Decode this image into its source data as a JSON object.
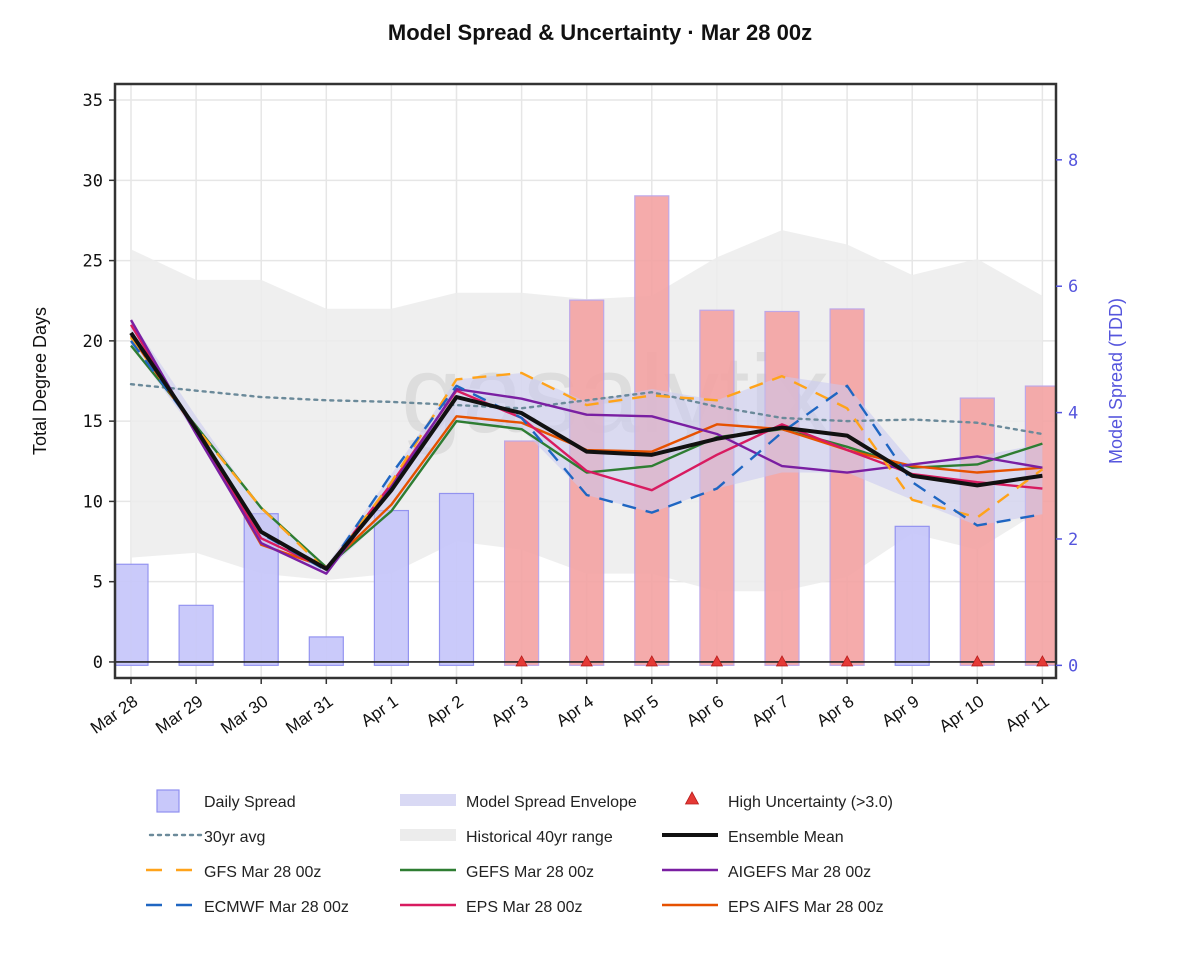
{
  "chart_data": {
    "type": "line",
    "title": "Model Spread & Uncertainty · Mar 28 00z",
    "watermark": "gasalytix",
    "categories": [
      "Mar 28",
      "Mar 29",
      "Mar 30",
      "Mar 31",
      "Apr 1",
      "Apr 2",
      "Apr 3",
      "Apr 4",
      "Apr 5",
      "Apr 6",
      "Apr 7",
      "Apr 8",
      "Apr 9",
      "Apr 10",
      "Apr 11"
    ],
    "y_left": {
      "label": "Total Degree Days",
      "range": [
        -1,
        36
      ],
      "ticks": [
        0,
        5,
        10,
        15,
        20,
        25,
        30,
        35
      ]
    },
    "y_right": {
      "label": "Model Spread (TDD)",
      "range": [
        -0.2,
        9.2
      ],
      "ticks": [
        0,
        2,
        4,
        6,
        8
      ]
    },
    "grid": true,
    "historical_range": {
      "name": "Historical 40yr range",
      "upper": [
        25.7,
        23.8,
        23.8,
        22.0,
        22.0,
        23.0,
        23.0,
        22.6,
        22.8,
        25.2,
        26.9,
        26.0,
        24.1,
        25.1,
        22.8
      ],
      "lower": [
        6.5,
        6.8,
        5.5,
        5.1,
        5.5,
        7.5,
        7.0,
        5.5,
        5.5,
        4.4,
        4.4,
        5.3,
        8.0,
        7.0,
        9.5
      ]
    },
    "spread_envelope": {
      "name": "Model Spread Envelope",
      "upper": [
        21.3,
        15.3,
        9.5,
        6.0,
        11.7,
        17.6,
        18.0,
        16.2,
        17.0,
        16.3,
        17.8,
        17.2,
        12.4,
        12.8,
        13.6
      ],
      "lower": [
        19.7,
        14.2,
        7.2,
        5.6,
        9.4,
        15.0,
        14.5,
        10.4,
        9.3,
        10.8,
        11.8,
        11.8,
        10.1,
        8.5,
        9.2
      ]
    },
    "daily_spread": {
      "name": "Daily Spread",
      "values": [
        1.6,
        0.95,
        2.4,
        0.45,
        2.45,
        2.72,
        3.55,
        5.78,
        7.43,
        5.62,
        5.6,
        5.64,
        2.2,
        4.23,
        4.42
      ],
      "threshold": 3.0
    },
    "high_uncertainty": {
      "name": "High Uncertainty (>3.0)",
      "categories": [
        "Apr 3",
        "Apr 4",
        "Apr 5",
        "Apr 6",
        "Apr 7",
        "Apr 8",
        "Apr 10",
        "Apr 11"
      ]
    },
    "series": [
      {
        "name": "30yr avg",
        "color": "#6b8a9a",
        "dash": "dot",
        "values": [
          17.3,
          16.9,
          16.5,
          16.3,
          16.2,
          16.0,
          15.8,
          16.3,
          16.8,
          15.9,
          15.2,
          15.0,
          15.1,
          14.9,
          14.2
        ]
      },
      {
        "name": "GFS Mar 28 00z",
        "color": "#ffa31a",
        "dash": "dash",
        "values": [
          20.2,
          14.6,
          9.6,
          5.7,
          11.2,
          17.6,
          18.0,
          16.0,
          16.6,
          16.3,
          17.8,
          15.8,
          10.1,
          9.0,
          12.0
        ]
      },
      {
        "name": "ECMWF Mar 28 00z",
        "color": "#1f66c2",
        "dash": "dash",
        "values": [
          20.0,
          14.5,
          8.0,
          5.7,
          11.7,
          17.2,
          15.2,
          10.4,
          9.3,
          10.8,
          14.3,
          17.2,
          11.2,
          8.5,
          9.2
        ]
      },
      {
        "name": "Ensemble Mean",
        "color": "#111111",
        "dash": "solid",
        "values": [
          20.5,
          14.5,
          8.1,
          5.8,
          10.7,
          16.5,
          15.5,
          13.1,
          12.9,
          13.9,
          14.6,
          14.1,
          11.6,
          11.0,
          11.6
        ]
      },
      {
        "name": "GEFS Mar 28 00z",
        "color": "#2e7d32",
        "dash": "solid",
        "values": [
          19.7,
          14.7,
          9.6,
          5.9,
          9.4,
          15.0,
          14.5,
          11.8,
          12.2,
          14.0,
          14.5,
          13.4,
          12.1,
          12.3,
          13.6
        ]
      },
      {
        "name": "AIGEFS Mar 28 00z",
        "color": "#7a1fa2",
        "dash": "solid",
        "values": [
          21.3,
          14.2,
          7.4,
          5.5,
          10.9,
          17.0,
          16.4,
          15.4,
          15.3,
          14.2,
          12.2,
          11.8,
          12.3,
          12.8,
          12.1
        ]
      },
      {
        "name": "EPS Mar 28 00z",
        "color": "#d81b60",
        "dash": "solid",
        "values": [
          21.0,
          14.3,
          7.7,
          5.8,
          11.1,
          16.9,
          15.2,
          11.9,
          10.7,
          12.9,
          14.8,
          13.2,
          11.7,
          11.2,
          10.8
        ]
      },
      {
        "name": "EPS AIFS Mar 28 00z",
        "color": "#e65100",
        "dash": "solid",
        "values": [
          20.3,
          14.4,
          7.3,
          5.9,
          9.8,
          15.3,
          14.9,
          13.2,
          13.1,
          14.8,
          14.5,
          13.2,
          12.2,
          11.8,
          12.1
        ]
      }
    ],
    "legend": {
      "position": "bottom",
      "entries": [
        "Daily Spread",
        "Model Spread Envelope",
        "High Uncertainty (>3.0)",
        "30yr avg",
        "Historical 40yr range",
        "Ensemble Mean",
        "GFS Mar 28 00z",
        "GEFS Mar 28 00z",
        "AIGEFS Mar 28 00z",
        "ECMWF Mar 28 00z",
        "EPS Mar 28 00z",
        "EPS AIFS Mar 28 00z"
      ]
    },
    "colors": {
      "spread_bar_low": "#c8c8fa",
      "spread_bar_low_edge": "#8f8ff0",
      "spread_bar_high": "#f4a3a3",
      "spread_bar_high_edge": "#b8a0e8",
      "envelope": "#c9c9f0",
      "historical": "#ececec",
      "marker": "#e53935",
      "right_axis": "#5555dd",
      "grid": "#e6e6e6"
    }
  }
}
